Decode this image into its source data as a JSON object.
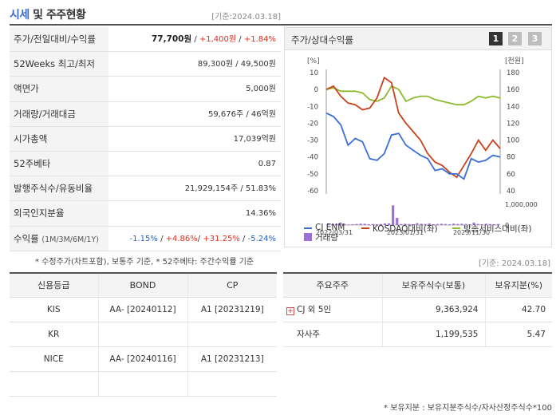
{
  "header": {
    "title_blue": "시세",
    "title_rest": " 및 주주현황",
    "date": "[기준:2024.03.18]"
  },
  "stats": {
    "price": {
      "label": "주가/전일대비/수익률",
      "price": "77,700원",
      "sep1": " / ",
      "change": "+1,400원",
      "sep2": " / ",
      "rate": "+1.84%"
    },
    "week52": {
      "label": "52Weeks 최고/최저",
      "value": "89,300원 / 49,500원"
    },
    "par": {
      "label": "액면가",
      "value": "5,000원"
    },
    "volume": {
      "label": "거래량/거래대금",
      "value": "59,676주 / 46억원"
    },
    "mcap": {
      "label": "시가총액",
      "value": "17,039억원"
    },
    "beta": {
      "label": "52주베타",
      "value": "0.87"
    },
    "shares": {
      "label": "발행주식수/유동비율",
      "value": "21,929,154주 / 51.83%"
    },
    "foreign": {
      "label": "외국인지분율",
      "value": "14.36%"
    },
    "returns": {
      "label": "수익률",
      "label_small": "(1M/3M/6M/1Y)",
      "r1": "-1.15%",
      "r2": "+4.86%",
      "r3": "+31.25%",
      "r4": "-5.24%",
      "sep": "/ "
    }
  },
  "notes": {
    "left": "* 수정주가(차트포함), 보통주 기준, * 52주베타: 주간수익률 기준",
    "right_date": "[기준: 2024.03.18]",
    "bottom": "* 보유지분 : 보유지분주식수/자사산정주식수*100"
  },
  "chart_panel": {
    "title": "주가/상대수익률",
    "pages": [
      "1",
      "2",
      "3"
    ]
  },
  "chart_data": {
    "type": "line",
    "left_axis_unit": "[%]",
    "right_axis_unit": "[천원]",
    "left_ticks": [
      "10",
      "0",
      "-10",
      "-20",
      "-30",
      "-40",
      "-50",
      "-60"
    ],
    "right_ticks": [
      "180",
      "160",
      "140",
      "120",
      "100",
      "80",
      "60",
      "40"
    ],
    "volume_tick": "1,000,000",
    "volume_tick_zero": "0",
    "x_ticks": [
      "2022/03/31",
      "2023/01/31",
      "2023/11/30"
    ],
    "left_range": [
      -60,
      10
    ],
    "right_range": [
      40,
      180
    ],
    "series": [
      {
        "name": "CJ ENM",
        "axis": "left",
        "color": "#3b6fd6",
        "values": [
          -14,
          -16,
          -21,
          -33,
          -29,
          -31,
          -41,
          -42,
          -38,
          -27,
          -26,
          -33,
          -36,
          -39,
          -41,
          -48,
          -47,
          -50,
          -50,
          -53,
          -41,
          -43,
          -42,
          -39,
          -40
        ]
      },
      {
        "name": "KOSDAQ대비(좌)",
        "axis": "left",
        "color": "#c8431c",
        "values": [
          0,
          2,
          -4,
          -8,
          -9,
          -12,
          -11,
          -5,
          7,
          4,
          -14,
          -20,
          -25,
          -30,
          -38,
          -43,
          -45,
          -49,
          -52,
          -45,
          -38,
          -30,
          -36,
          -30,
          -35
        ]
      },
      {
        "name": "방송서비스대비(좌)",
        "axis": "left",
        "color": "#8dbb2c",
        "values": [
          0,
          1,
          -1,
          -1,
          -1,
          -2,
          -6,
          -7,
          -5,
          2,
          0,
          -7,
          -5,
          -4,
          -4,
          -6,
          -7,
          -8,
          -9,
          -9,
          -7,
          -4,
          -5,
          -4,
          -5
        ]
      }
    ],
    "volume": {
      "name": "거래량",
      "color": "#9b6fd6",
      "values": [
        0.05,
        0.04,
        0.06,
        0.12,
        0.05,
        0.03,
        0.04,
        0.05,
        0.07,
        0.06,
        0.04,
        0.05,
        0.04,
        0.05,
        0.08,
        0.08,
        0.95,
        0.35,
        0.05,
        0.06,
        0.05,
        0.04,
        0.09,
        0.06,
        0.05,
        0.08,
        0.04,
        0.05,
        0.06,
        0.05,
        0.04,
        0.07,
        0.05,
        0.06,
        0.05,
        0.04,
        0.12,
        0.05,
        0.04,
        0.06,
        0.05,
        0.04,
        0.05
      ]
    }
  },
  "credit": {
    "headers": [
      "신용등급",
      "BOND",
      "CP"
    ],
    "rows": [
      [
        "KIS",
        "AA-  [20240112]",
        "A1  [20231219]"
      ],
      [
        "KR",
        "",
        ""
      ],
      [
        "NICE",
        "AA-  [20240116]",
        "A1  [20231213]"
      ],
      [
        "",
        "",
        ""
      ]
    ]
  },
  "holders": {
    "headers": [
      "주요주주",
      "보유주식수(보통)",
      "보유지분(%)"
    ],
    "rows": [
      [
        "CJ 외 5인",
        "9,363,924",
        "42.70"
      ],
      [
        "자사주",
        "1,199,535",
        "5.47"
      ]
    ],
    "expand_symbol": "+"
  }
}
